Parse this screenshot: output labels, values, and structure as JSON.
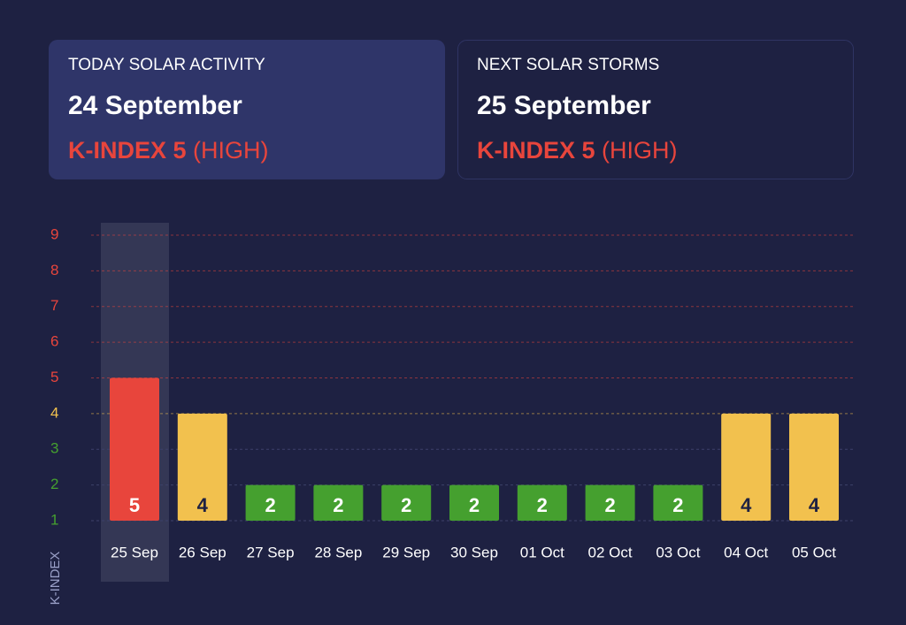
{
  "cards": [
    {
      "heading": "TODAY SOLAR ACTIVITY",
      "date": "24 September",
      "index": "K-INDEX 5",
      "level": "(HIGH)"
    },
    {
      "heading": "NEXT SOLAR STORMS",
      "date": "25 September",
      "index": "K-INDEX 5",
      "level": "(HIGH)"
    }
  ],
  "chart_data": {
    "type": "bar",
    "y_label": "K-INDEX",
    "categories": [
      "25 Sep",
      "26 Sep",
      "27 Sep",
      "28 Sep",
      "29 Sep",
      "30 Sep",
      "01 Oct",
      "02 Oct",
      "03 Oct",
      "04 Oct",
      "05 Oct"
    ],
    "values": [
      5,
      4,
      2,
      2,
      2,
      2,
      2,
      2,
      2,
      4,
      4
    ],
    "colors": [
      "#e8453c",
      "#f2c14e",
      "#45a02f",
      "#45a02f",
      "#45a02f",
      "#45a02f",
      "#45a02f",
      "#45a02f",
      "#45a02f",
      "#f2c14e",
      "#f2c14e"
    ],
    "ylim": [
      1,
      9
    ],
    "yticks": [
      1,
      2,
      3,
      4,
      5,
      6,
      7,
      8,
      9
    ],
    "ytick_colors": [
      "#45a02f",
      "#45a02f",
      "#45a02f",
      "#f2c14e",
      "#e8453c",
      "#e8453c",
      "#e8453c",
      "#e8453c",
      "#e8453c"
    ],
    "grid": true
  }
}
